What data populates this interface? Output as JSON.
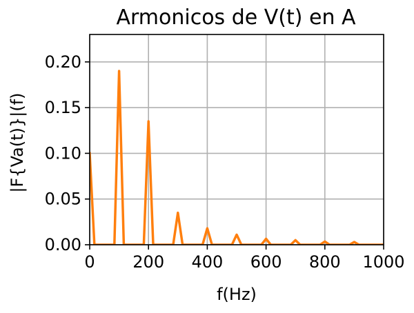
{
  "chart_data": {
    "type": "line",
    "title": "Armonicos de V(t) en A",
    "xlabel": "f(Hz)",
    "ylabel": "|F{Va(t)}|(f)",
    "xlim": [
      0,
      1000
    ],
    "ylim": [
      0,
      0.23
    ],
    "x_ticks": [
      0,
      200,
      400,
      600,
      800,
      1000
    ],
    "y_ticks": [
      0.0,
      0.05,
      0.1,
      0.15,
      0.2
    ],
    "x_tick_labels": [
      "0",
      "200",
      "400",
      "600",
      "800",
      "1000"
    ],
    "y_tick_labels": [
      "0.00",
      "0.05",
      "0.10",
      "0.15",
      "0.20"
    ],
    "grid": true,
    "series": [
      {
        "color": "#ff7f0e",
        "x": [
          0,
          16,
          84,
          100,
          116,
          184,
          200,
          216,
          284,
          300,
          316,
          384,
          400,
          416,
          484,
          500,
          516,
          584,
          600,
          616,
          684,
          700,
          716,
          784,
          800,
          816,
          884,
          900,
          916,
          1000
        ],
        "y": [
          0.1,
          0,
          0,
          0.19,
          0,
          0,
          0.135,
          0,
          0,
          0.035,
          0,
          0,
          0.018,
          0,
          0,
          0.011,
          0,
          0,
          0.0065,
          0,
          0,
          0.005,
          0,
          0,
          0.0035,
          0,
          0,
          0.003,
          0,
          0
        ]
      }
    ]
  }
}
